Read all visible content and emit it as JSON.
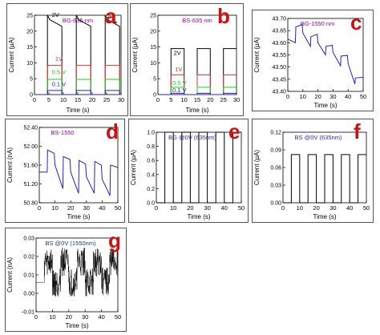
{
  "colors": {
    "red": "#e03030",
    "green": "#22cc22",
    "blue": "#2222cc",
    "black": "#000000",
    "label": "#cc1111",
    "title": "#9900aa",
    "title_blue": "#2233aa"
  },
  "chart_data": [
    {
      "id": "a",
      "panel_label": "a",
      "type": "line",
      "title": "BG-635 nm",
      "xlabel": "Time (s)",
      "ylabel": "Current (μA)",
      "xlim": [
        0,
        30
      ],
      "ylim": [
        0,
        25
      ],
      "xticks": [
        "0",
        "5",
        "10",
        "15",
        "20",
        "25",
        "30"
      ],
      "yticks": [
        "0",
        "5",
        "10",
        "15",
        "20",
        "25"
      ],
      "annotations": [
        {
          "text": "2V",
          "x": 6,
          "y": 24.5,
          "color": "#000000"
        },
        {
          "text": "1V",
          "x": 7.2,
          "y": 10.6,
          "color": "#e03030"
        },
        {
          "text": "0.5 V",
          "x": 6,
          "y": 6.5,
          "color": "#22cc22"
        },
        {
          "text": "0.1 V",
          "x": 6,
          "y": 2.6,
          "color": "#2222cc"
        }
      ],
      "pulse": {
        "period": 10,
        "on": 5,
        "start": 4.5
      },
      "series": [
        {
          "name": "2V",
          "on": 24,
          "off": 0,
          "decay": 2.5,
          "color": "#000000"
        },
        {
          "name": "1V",
          "on": 9.2,
          "off": 0,
          "color": "#e03030"
        },
        {
          "name": "0.5 V",
          "on": 4.8,
          "off": 0,
          "color": "#22cc22"
        },
        {
          "name": "0.1 V",
          "on": 1.3,
          "off": 0,
          "color": "#2222cc"
        }
      ]
    },
    {
      "id": "b",
      "panel_label": "b",
      "type": "line",
      "title": "BS-635 nm",
      "xlabel": "Time (s)",
      "ylabel": "Current (μA)",
      "xlim": [
        0,
        30
      ],
      "ylim": [
        0,
        25
      ],
      "xticks": [
        "0",
        "5",
        "10",
        "15",
        "20",
        "25",
        "30"
      ],
      "yticks": [
        "0",
        "5",
        "10",
        "15",
        "20",
        "25"
      ],
      "annotations": [
        {
          "text": "2V",
          "x": 6,
          "y": 12.5,
          "color": "#000000"
        },
        {
          "text": "1V",
          "x": 6.5,
          "y": 7.3,
          "color": "#e03030"
        },
        {
          "text": "0.5 V",
          "x": 5.5,
          "y": 3.0,
          "color": "#22cc22"
        },
        {
          "text": "0.1 V",
          "x": 5.5,
          "y": 0.8,
          "color": "#2222cc"
        }
      ],
      "pulse": {
        "period": 10,
        "on": 5,
        "start": 5
      },
      "series": [
        {
          "name": "2V",
          "on": 14.5,
          "off": 0,
          "color": "#000000"
        },
        {
          "name": "1V",
          "on": 6.2,
          "off": 0,
          "color": "#e03030"
        },
        {
          "name": "0.5 V",
          "on": 2.3,
          "off": 0,
          "color": "#22cc22"
        },
        {
          "name": "0.1 V",
          "on": 0.4,
          "off": 0,
          "color": "#2222cc"
        }
      ]
    },
    {
      "id": "c",
      "panel_label": "c",
      "type": "line",
      "title": "BG-1550 nm",
      "xlabel": "Time (s)",
      "ylabel": "Current (μA)",
      "xlim": [
        0,
        50
      ],
      "ylim": [
        43.4,
        43.7
      ],
      "xticks": [
        "0",
        "10",
        "20",
        "30",
        "40",
        "50"
      ],
      "yticks": [
        "43.40",
        "43.45",
        "43.50",
        "43.55",
        "43.60",
        "43.65",
        "43.70"
      ],
      "series": [
        {
          "color": "#2222cc",
          "points": [
            [
              0,
              43.615
            ],
            [
              5,
              43.6
            ],
            [
              5.3,
              43.665
            ],
            [
              9.5,
              43.675
            ],
            [
              10,
              43.64
            ],
            [
              15,
              43.585
            ],
            [
              15.3,
              43.625
            ],
            [
              19.5,
              43.635
            ],
            [
              20,
              43.6
            ],
            [
              25,
              43.55
            ],
            [
              25.3,
              43.585
            ],
            [
              29.5,
              43.59
            ],
            [
              30,
              43.56
            ],
            [
              35,
              43.505
            ],
            [
              35.3,
              43.545
            ],
            [
              39.5,
              43.548
            ],
            [
              40,
              43.515
            ],
            [
              44.5,
              43.43
            ],
            [
              44.8,
              43.455
            ],
            [
              50,
              43.458
            ]
          ]
        }
      ]
    },
    {
      "id": "d",
      "panel_label": "d",
      "type": "line",
      "title": "BS-1550",
      "xlabel": "Time (s)",
      "ylabel": "Current (nA)",
      "xlim": [
        0,
        50
      ],
      "ylim": [
        50.8,
        52.4
      ],
      "xticks": [
        "0",
        "10",
        "20",
        "30",
        "40",
        "50"
      ],
      "yticks": [
        "50.80",
        "51.20",
        "51.60",
        "52.00",
        "52.40"
      ],
      "series": [
        {
          "color": "#2222cc",
          "points": [
            [
              0,
              51.45
            ],
            [
              5,
              51.45
            ],
            [
              5.3,
              51.92
            ],
            [
              9.5,
              51.85
            ],
            [
              10,
              51.6
            ],
            [
              15,
              51.1
            ],
            [
              15.3,
              51.78
            ],
            [
              19.5,
              51.72
            ],
            [
              20,
              51.45
            ],
            [
              25,
              51.0
            ],
            [
              25.3,
              51.7
            ],
            [
              29.5,
              51.62
            ],
            [
              30,
              51.35
            ],
            [
              35,
              51.0
            ],
            [
              35.3,
              51.68
            ],
            [
              39.5,
              51.6
            ],
            [
              40,
              51.3
            ],
            [
              45,
              50.95
            ],
            [
              45.3,
              51.6
            ],
            [
              50,
              51.55
            ]
          ]
        }
      ]
    },
    {
      "id": "e",
      "panel_label": "e",
      "type": "line",
      "title": "BG @0V (635nm)",
      "xlabel": "Time (s)",
      "ylabel": "Current (μA)",
      "xlim": [
        0,
        50
      ],
      "ylim": [
        0,
        1.0
      ],
      "xticks": [
        "0",
        "10",
        "20",
        "30",
        "40",
        "50"
      ],
      "yticks": [
        "0.0",
        "0.2",
        "0.4",
        "0.6",
        "0.8",
        "1.0"
      ],
      "pulse": {
        "period": 10,
        "on": 5,
        "start": 5
      },
      "series": [
        {
          "on": 1.2,
          "off": 0,
          "color": "#000000"
        }
      ]
    },
    {
      "id": "f",
      "panel_label": "f",
      "type": "line",
      "title": "BS @0V (635nm)",
      "xlabel": "Time (s)",
      "ylabel": "Current (μA)",
      "xlim": [
        0,
        50
      ],
      "ylim": [
        0,
        0.12
      ],
      "xticks": [
        "0",
        "10",
        "20",
        "30",
        "40",
        "50"
      ],
      "yticks": [
        "0.00",
        "0.03",
        "0.06",
        "0.09",
        "0.12"
      ],
      "pulse": {
        "period": 10,
        "on": 5,
        "start": 5
      },
      "series": [
        {
          "on": 0.082,
          "off": 0,
          "color": "#000000"
        }
      ]
    },
    {
      "id": "g",
      "panel_label": "g",
      "type": "line",
      "title": "BS @0V (1550nm)",
      "xlabel": "Time (s)",
      "ylabel": "Current (nA)",
      "xlim": [
        0,
        50
      ],
      "ylim": [
        -0.01,
        0.03
      ],
      "xticks": [
        "0",
        "10",
        "20",
        "30",
        "40",
        "50"
      ],
      "yticks": [
        "-0.01",
        "0.00",
        "0.01",
        "0.02",
        "0.03"
      ],
      "pulse": {
        "period": 10,
        "on": 5,
        "start": 5
      },
      "series": [
        {
          "on": 0.017,
          "off": 0.006,
          "noise": 0.008,
          "color": "#000000"
        }
      ]
    }
  ]
}
